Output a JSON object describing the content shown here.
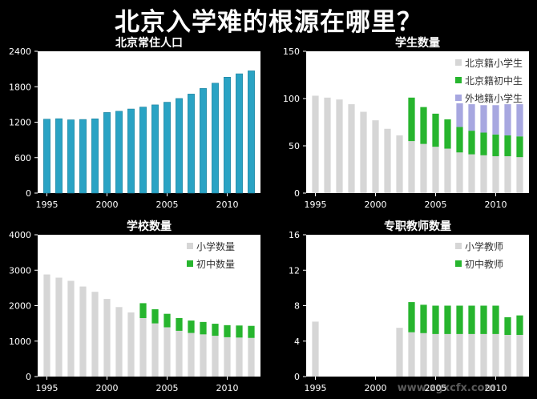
{
  "title": "北京入学难的根源在哪里？",
  "watermark": "www.zgxcfx.com",
  "colors": {
    "background": "#000000",
    "panel": "#ffffff",
    "teal": "#2aa3c4",
    "gray": "#d6d6d6",
    "green": "#27b52e",
    "purple": "#a7a7e0"
  },
  "chart_data": [
    {
      "type": "bar",
      "title": "北京常住人口",
      "x": [
        1995,
        1996,
        1997,
        1998,
        1999,
        2000,
        2001,
        2002,
        2003,
        2004,
        2005,
        2006,
        2007,
        2008,
        2009,
        2010,
        2011,
        2012
      ],
      "series": [
        {
          "values": [
            1251,
            1259,
            1240,
            1246,
            1257,
            1364,
            1385,
            1423,
            1456,
            1493,
            1538,
            1601,
            1676,
            1771,
            1860,
            1962,
            2019,
            2069
          ]
        }
      ],
      "xticks": [
        1995,
        2000,
        2005,
        2010
      ],
      "yticks": [
        0,
        600,
        1200,
        1800,
        2400
      ],
      "ylim": [
        0,
        2400
      ],
      "grid": false
    },
    {
      "type": "bar",
      "stacked": true,
      "title": "学生数量",
      "x": [
        1995,
        1996,
        1997,
        1998,
        1999,
        2000,
        2001,
        2002,
        2003,
        2004,
        2005,
        2006,
        2007,
        2008,
        2009,
        2010,
        2011,
        2012
      ],
      "series": [
        {
          "name": "北京籍小学生",
          "values": [
            103,
            101,
            99,
            94,
            86,
            77,
            68,
            61,
            55,
            52,
            49,
            47,
            43,
            41,
            40,
            39,
            39,
            38
          ]
        },
        {
          "name": "北京籍初中生",
          "values": [
            0,
            0,
            0,
            0,
            0,
            0,
            0,
            0,
            46,
            39,
            35,
            31,
            27,
            25,
            24,
            23,
            22,
            22
          ]
        },
        {
          "name": "外地籍小学生",
          "values": [
            0,
            0,
            0,
            0,
            0,
            0,
            0,
            0,
            0,
            0,
            0,
            0,
            25,
            28,
            29,
            31,
            33,
            34
          ]
        }
      ],
      "xticks": [
        1995,
        2000,
        2005,
        2010
      ],
      "yticks": [
        0,
        50,
        100,
        150
      ],
      "ylim": [
        0,
        150
      ],
      "legend": "top-right",
      "grid": false
    },
    {
      "type": "bar",
      "stacked": true,
      "title": "学校数量",
      "x": [
        1995,
        1996,
        1997,
        1998,
        1999,
        2000,
        2001,
        2002,
        2003,
        2004,
        2005,
        2006,
        2007,
        2008,
        2009,
        2010,
        2011,
        2012
      ],
      "series": [
        {
          "name": "小学数量",
          "values": [
            2880,
            2790,
            2700,
            2540,
            2390,
            2190,
            1960,
            1810,
            1650,
            1500,
            1390,
            1290,
            1230,
            1190,
            1150,
            1110,
            1100,
            1090
          ]
        },
        {
          "name": "初中数量",
          "values": [
            0,
            0,
            0,
            0,
            0,
            0,
            0,
            0,
            420,
            400,
            380,
            360,
            350,
            350,
            340,
            340,
            340,
            340
          ]
        }
      ],
      "xticks": [
        1995,
        2000,
        2005,
        2010
      ],
      "yticks": [
        0,
        1000,
        2000,
        3000,
        4000
      ],
      "ylim": [
        0,
        4000
      ],
      "legend": "top-right",
      "grid": false
    },
    {
      "type": "bar",
      "stacked": true,
      "title": "专职教师数量",
      "x": [
        1995,
        1996,
        1997,
        1998,
        1999,
        2000,
        2001,
        2002,
        2003,
        2004,
        2005,
        2006,
        2007,
        2008,
        2009,
        2010,
        2011,
        2012
      ],
      "series": [
        {
          "name": "小学教师",
          "values": [
            6.2,
            0,
            0,
            0,
            0,
            0,
            0,
            5.5,
            5.0,
            4.9,
            4.8,
            4.8,
            4.8,
            4.8,
            4.8,
            4.8,
            4.7,
            4.7
          ]
        },
        {
          "name": "初中教师",
          "values": [
            0,
            0,
            0,
            0,
            0,
            0,
            0,
            0,
            3.4,
            3.2,
            3.2,
            3.2,
            3.2,
            3.2,
            3.2,
            3.2,
            2.0,
            2.2
          ]
        }
      ],
      "xticks": [
        1995,
        2000,
        2005,
        2010
      ],
      "yticks": [
        0,
        4,
        8,
        12,
        16
      ],
      "ylim": [
        0,
        16
      ],
      "legend": "top-right",
      "grid": false
    }
  ]
}
